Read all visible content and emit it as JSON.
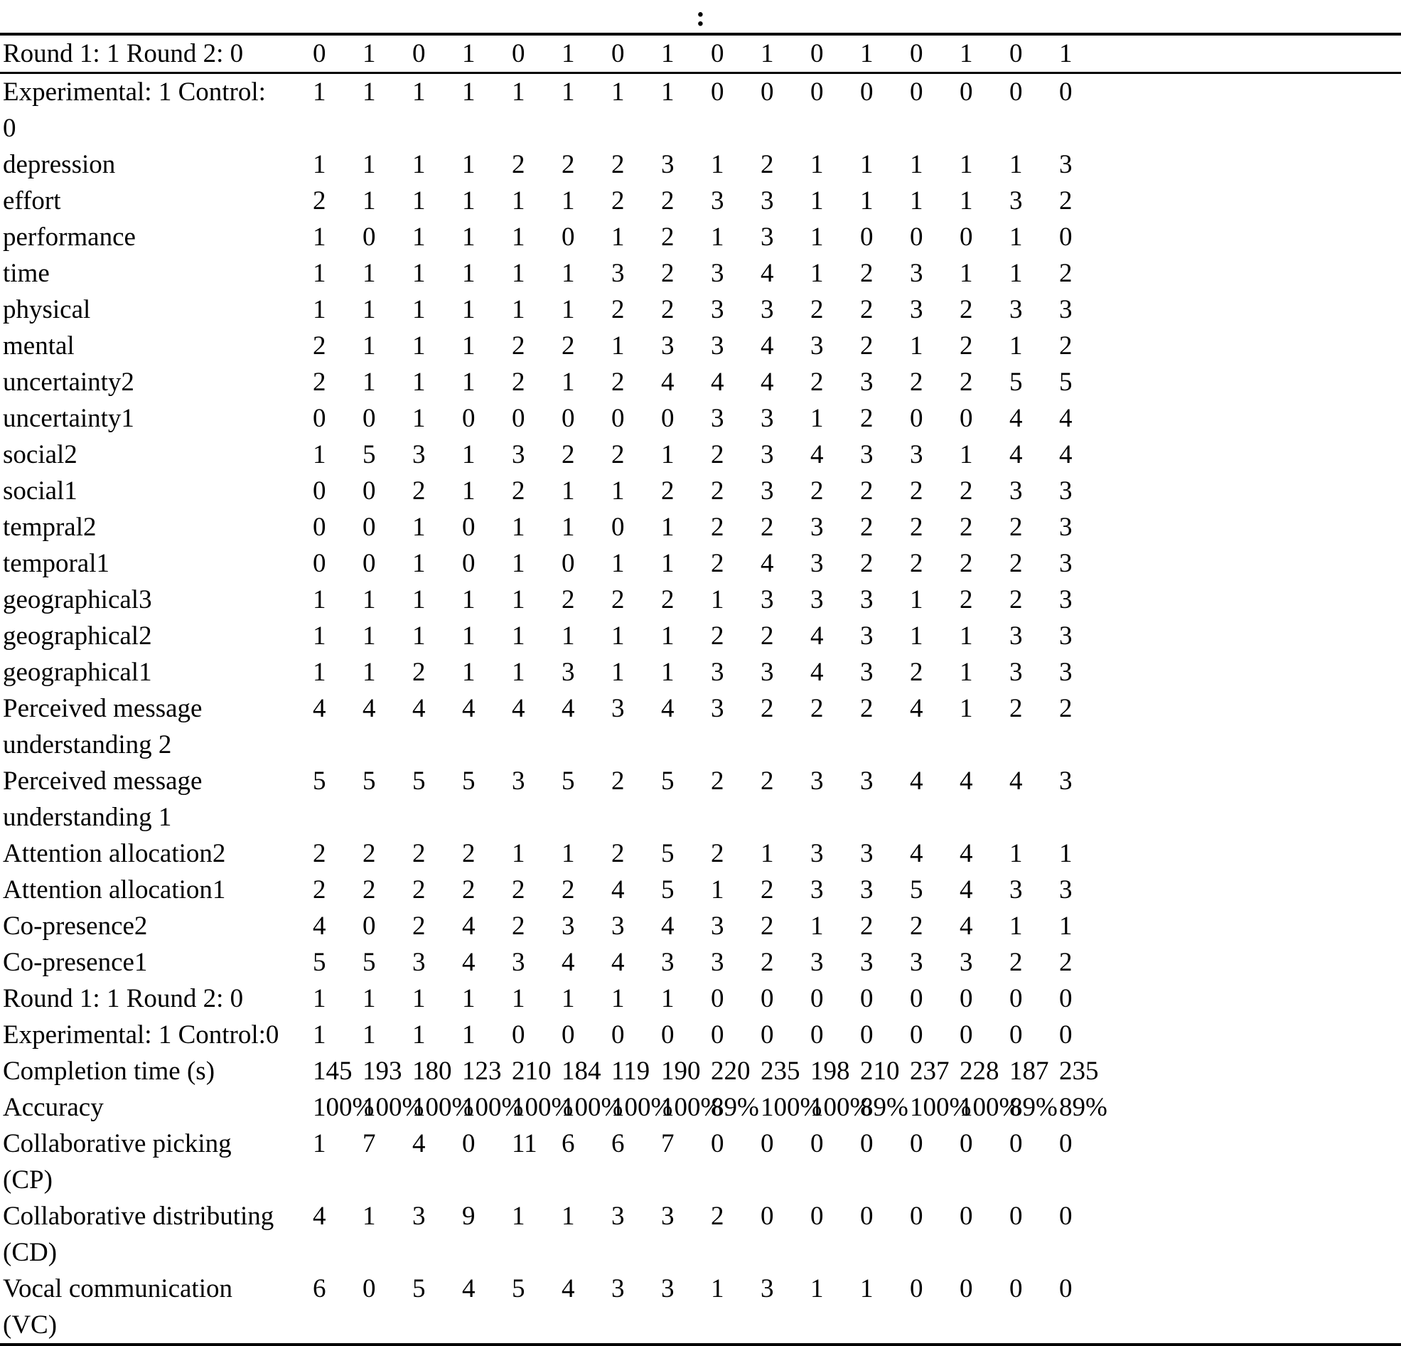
{
  "caption": ":",
  "colors": {
    "text": "#000000",
    "background": "#ffffff",
    "rule": "#000000"
  },
  "table": {
    "header_row": {
      "label": [
        "Round 1: 1 Round 2: 0"
      ],
      "values": [
        "0",
        "1",
        "0",
        "1",
        "0",
        "1",
        "0",
        "1",
        "0",
        "1",
        "0",
        "1",
        "0",
        "1",
        "0",
        "1"
      ]
    },
    "rows": [
      {
        "label": [
          "Experimental: 1 Control:",
          "0"
        ],
        "values": [
          "1",
          "1",
          "1",
          "1",
          "1",
          "1",
          "1",
          "1",
          "0",
          "0",
          "0",
          "0",
          "0",
          "0",
          "0",
          "0"
        ]
      },
      {
        "label": [
          "depression"
        ],
        "values": [
          "1",
          "1",
          "1",
          "1",
          "2",
          "2",
          "2",
          "3",
          "1",
          "2",
          "1",
          "1",
          "1",
          "1",
          "1",
          "3"
        ]
      },
      {
        "label": [
          "effort"
        ],
        "values": [
          "2",
          "1",
          "1",
          "1",
          "1",
          "1",
          "2",
          "2",
          "3",
          "3",
          "1",
          "1",
          "1",
          "1",
          "3",
          "2"
        ]
      },
      {
        "label": [
          "performance"
        ],
        "values": [
          "1",
          "0",
          "1",
          "1",
          "1",
          "0",
          "1",
          "2",
          "1",
          "3",
          "1",
          "0",
          "0",
          "0",
          "1",
          "0"
        ]
      },
      {
        "label": [
          "time"
        ],
        "values": [
          "1",
          "1",
          "1",
          "1",
          "1",
          "1",
          "3",
          "2",
          "3",
          "4",
          "1",
          "2",
          "3",
          "1",
          "1",
          "2"
        ]
      },
      {
        "label": [
          "physical"
        ],
        "values": [
          "1",
          "1",
          "1",
          "1",
          "1",
          "1",
          "2",
          "2",
          "3",
          "3",
          "2",
          "2",
          "3",
          "2",
          "3",
          "3"
        ]
      },
      {
        "label": [
          "mental"
        ],
        "values": [
          "2",
          "1",
          "1",
          "1",
          "2",
          "2",
          "1",
          "3",
          "3",
          "4",
          "3",
          "2",
          "1",
          "2",
          "1",
          "2"
        ]
      },
      {
        "label": [
          "uncertainty2"
        ],
        "values": [
          "2",
          "1",
          "1",
          "1",
          "2",
          "1",
          "2",
          "4",
          "4",
          "4",
          "2",
          "3",
          "2",
          "2",
          "5",
          "5"
        ]
      },
      {
        "label": [
          "uncertainty1"
        ],
        "values": [
          "0",
          "0",
          "1",
          "0",
          "0",
          "0",
          "0",
          "0",
          "3",
          "3",
          "1",
          "2",
          "0",
          "0",
          "4",
          "4"
        ]
      },
      {
        "label": [
          "social2"
        ],
        "values": [
          "1",
          "5",
          "3",
          "1",
          "3",
          "2",
          "2",
          "1",
          "2",
          "3",
          "4",
          "3",
          "3",
          "1",
          "4",
          "4"
        ]
      },
      {
        "label": [
          "social1"
        ],
        "values": [
          "0",
          "0",
          "2",
          "1",
          "2",
          "1",
          "1",
          "2",
          "2",
          "3",
          "2",
          "2",
          "2",
          "2",
          "3",
          "3"
        ]
      },
      {
        "label": [
          "tempral2"
        ],
        "values": [
          "0",
          "0",
          "1",
          "0",
          "1",
          "1",
          "0",
          "1",
          "2",
          "2",
          "3",
          "2",
          "2",
          "2",
          "2",
          "3"
        ]
      },
      {
        "label": [
          "temporal1"
        ],
        "values": [
          "0",
          "0",
          "1",
          "0",
          "1",
          "0",
          "1",
          "1",
          "2",
          "4",
          "3",
          "2",
          "2",
          "2",
          "2",
          "3"
        ]
      },
      {
        "label": [
          "geographical3"
        ],
        "values": [
          "1",
          "1",
          "1",
          "1",
          "1",
          "2",
          "2",
          "2",
          "1",
          "3",
          "3",
          "3",
          "1",
          "2",
          "2",
          "3"
        ]
      },
      {
        "label": [
          "geographical2"
        ],
        "values": [
          "1",
          "1",
          "1",
          "1",
          "1",
          "1",
          "1",
          "1",
          "2",
          "2",
          "4",
          "3",
          "1",
          "1",
          "3",
          "3"
        ]
      },
      {
        "label": [
          "geographical1"
        ],
        "values": [
          "1",
          "1",
          "2",
          "1",
          "1",
          "3",
          "1",
          "1",
          "3",
          "3",
          "4",
          "3",
          "2",
          "1",
          "3",
          "3"
        ]
      },
      {
        "label": [
          "Perceived message",
          "understanding 2"
        ],
        "values": [
          "4",
          "4",
          "4",
          "4",
          "4",
          "4",
          "3",
          "4",
          "3",
          "2",
          "2",
          "2",
          "4",
          "1",
          "2",
          "2"
        ]
      },
      {
        "label": [
          "Perceived message",
          "understanding 1"
        ],
        "values": [
          "5",
          "5",
          "5",
          "5",
          "3",
          "5",
          "2",
          "5",
          "2",
          "2",
          "3",
          "3",
          "4",
          "4",
          "4",
          "3"
        ]
      },
      {
        "label": [
          "Attention allocation2"
        ],
        "values": [
          "2",
          "2",
          "2",
          "2",
          "1",
          "1",
          "2",
          "5",
          "2",
          "1",
          "3",
          "3",
          "4",
          "4",
          "1",
          "1"
        ]
      },
      {
        "label": [
          "Attention allocation1"
        ],
        "values": [
          "2",
          "2",
          "2",
          "2",
          "2",
          "2",
          "4",
          "5",
          "1",
          "2",
          "3",
          "3",
          "5",
          "4",
          "3",
          "3"
        ]
      },
      {
        "label": [
          "Co-presence2"
        ],
        "values": [
          "4",
          "0",
          "2",
          "4",
          "2",
          "3",
          "3",
          "4",
          "3",
          "2",
          "1",
          "2",
          "2",
          "4",
          "1",
          "1"
        ]
      },
      {
        "label": [
          "Co-presence1"
        ],
        "values": [
          "5",
          "5",
          "3",
          "4",
          "3",
          "4",
          "4",
          "3",
          "3",
          "2",
          "3",
          "3",
          "3",
          "3",
          "2",
          "2"
        ]
      },
      {
        "label": [
          "Round 1: 1 Round 2: 0"
        ],
        "values": [
          "1",
          "1",
          "1",
          "1",
          "1",
          "1",
          "1",
          "1",
          "0",
          "0",
          "0",
          "0",
          "0",
          "0",
          "0",
          "0"
        ]
      },
      {
        "label": [
          "Experimental: 1 Control:0"
        ],
        "values": [
          "1",
          "1",
          "1",
          "1",
          "0",
          "0",
          "0",
          "0",
          "0",
          "0",
          "0",
          "0",
          "0",
          "0",
          "0",
          "0"
        ]
      },
      {
        "label": [
          "Completion time (s)"
        ],
        "values": [
          "145",
          "193",
          "180",
          "123",
          "210",
          "184",
          "119",
          "190",
          "220",
          "235",
          "198",
          "210",
          "237",
          "228",
          "187",
          "235"
        ]
      },
      {
        "label": [
          "Accuracy"
        ],
        "values": [
          "100%",
          "100%",
          "100%",
          "100%",
          "100%",
          "100%",
          "100%",
          "100%",
          "89%",
          "100%",
          "100%",
          "89%",
          "100%",
          "100%",
          "89%",
          "89%"
        ]
      },
      {
        "label": [
          "Collaborative picking",
          "(CP)"
        ],
        "values": [
          "1",
          "7",
          "4",
          "0",
          "11",
          "6",
          "6",
          "7",
          "0",
          "0",
          "0",
          "0",
          "0",
          "0",
          "0",
          "0"
        ]
      },
      {
        "label": [
          "Collaborative distributing",
          "(CD)"
        ],
        "values": [
          "4",
          "1",
          "3",
          "9",
          "1",
          "1",
          "3",
          "3",
          "2",
          "0",
          "0",
          "0",
          "0",
          "0",
          "0",
          "0"
        ]
      },
      {
        "label": [
          "Vocal communication",
          "(VC)"
        ],
        "values": [
          "6",
          "0",
          "5",
          "4",
          "5",
          "4",
          "3",
          "3",
          "1",
          "3",
          "1",
          "1",
          "0",
          "0",
          "0",
          "0"
        ]
      }
    ]
  }
}
